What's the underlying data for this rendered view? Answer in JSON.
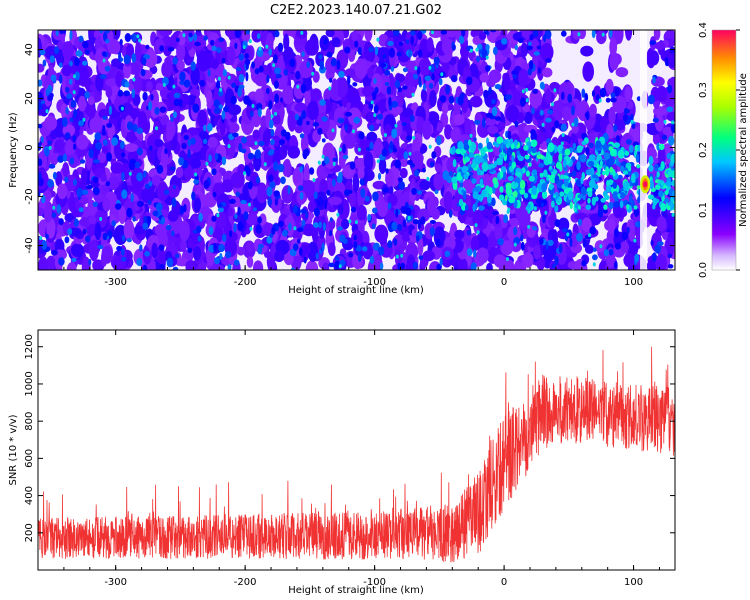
{
  "title": "C2E2.2023.140.07.21.G02",
  "chart_data": [
    {
      "type": "heatmap",
      "xlabel": "Height of straight line (km)",
      "ylabel": "Frequency (Hz)",
      "xlim": [
        -360,
        132
      ],
      "ylim": [
        -50,
        48
      ],
      "xticks": [
        -300,
        -200,
        -100,
        0,
        100
      ],
      "yticks": [
        -40,
        -20,
        0,
        20,
        40
      ],
      "colorbar": {
        "label": "Normalized spectral amplitude",
        "range": [
          0,
          0.4
        ],
        "ticks": [
          "0.0",
          "0.1",
          "0.2",
          "0.3",
          "0.4"
        ]
      },
      "notes_visible": "dense violet/blue noise; brighter blue-cyan band near 0 to -20 Hz above 0 km; peak near 110 km, -15 Hz; white gap near 35-110 km, 25-45 Hz"
    },
    {
      "type": "line",
      "xlabel": "Height of straight line (km)",
      "ylabel": "SNR (10 * v/v)",
      "xlim": [
        -360,
        132
      ],
      "ylim": [
        0,
        1290
      ],
      "xticks": [
        -300,
        -200,
        -100,
        0,
        100
      ],
      "yticks": [
        200,
        400,
        600,
        800,
        1000,
        1200
      ],
      "color": "#f03232",
      "trend": [
        {
          "x": -360,
          "mean": 170,
          "spread": 110
        },
        {
          "x": -200,
          "mean": 180,
          "spread": 120
        },
        {
          "x": -100,
          "mean": 185,
          "spread": 130
        },
        {
          "x": -40,
          "mean": 200,
          "spread": 160
        },
        {
          "x": -20,
          "mean": 300,
          "spread": 220
        },
        {
          "x": 0,
          "mean": 580,
          "spread": 260
        },
        {
          "x": 30,
          "mean": 850,
          "spread": 200
        },
        {
          "x": 60,
          "mean": 860,
          "spread": 180
        },
        {
          "x": 100,
          "mean": 820,
          "spread": 180
        },
        {
          "x": 132,
          "mean": 800,
          "spread": 190
        }
      ]
    }
  ]
}
